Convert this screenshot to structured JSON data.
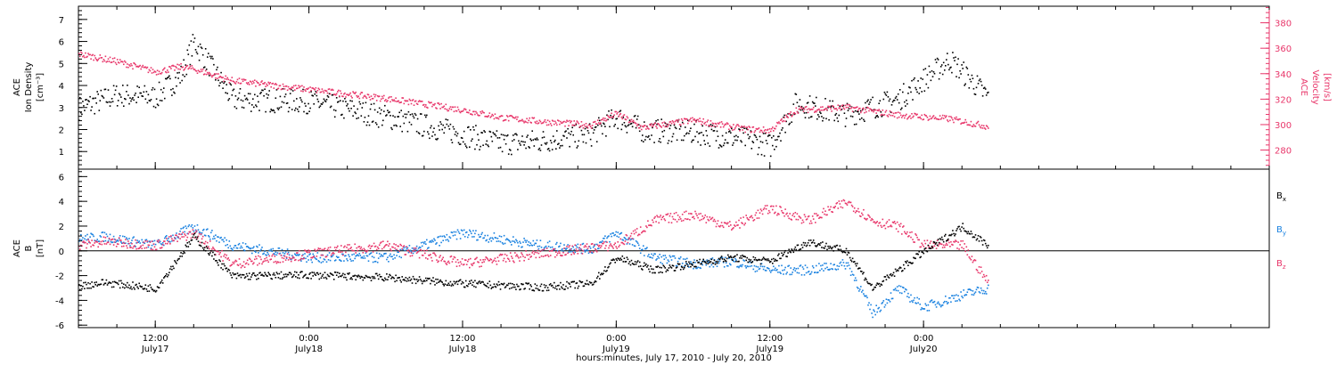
{
  "figure": {
    "xlabel": "hours:minutes, July 17, 2010 - July 20, 2010",
    "x_ticks": [
      {
        "time": "12:00",
        "day": "July17"
      },
      {
        "time": "0:00",
        "day": "July18"
      },
      {
        "time": "12:00",
        "day": "July18"
      },
      {
        "time": "0:00",
        "day": "July19"
      },
      {
        "time": "12:00",
        "day": "July19"
      },
      {
        "time": "0:00",
        "day": "July20"
      }
    ]
  },
  "chart_data": [
    {
      "type": "scatter",
      "panel": "top",
      "xlim": [
        "2010-07-17 06:00",
        "2010-07-21 03:00"
      ],
      "left_axis": {
        "label_line1": "ACE",
        "label_line2": "Ion Density",
        "units": "[cm⁻³]",
        "ylim": [
          0.2,
          7.6
        ],
        "ticks": [
          1,
          2,
          3,
          4,
          5,
          6,
          7
        ]
      },
      "right_axis": {
        "label_line1": "ACE",
        "label_line2": "Velocity",
        "units": "[km/s]",
        "ylim": [
          265,
          393
        ],
        "ticks": [
          280,
          300,
          320,
          340,
          360,
          380
        ]
      },
      "series": [
        {
          "name": "Ion Density",
          "axis": "left",
          "color": "#000000",
          "x": [
            "2010-07-17 06:00",
            "2010-07-17 09:00",
            "2010-07-17 12:00",
            "2010-07-17 14:00",
            "2010-07-17 15:00",
            "2010-07-17 18:00",
            "2010-07-18 00:00",
            "2010-07-18 06:00",
            "2010-07-18 12:00",
            "2010-07-18 15:00",
            "2010-07-18 18:00",
            "2010-07-18 22:00",
            "2010-07-19 00:00",
            "2010-07-19 02:00",
            "2010-07-19 06:00",
            "2010-07-19 10:00",
            "2010-07-19 12:00",
            "2010-07-19 14:00",
            "2010-07-19 18:00",
            "2010-07-19 22:00",
            "2010-07-20 02:00",
            "2010-07-20 05:00"
          ],
          "values": [
            3.0,
            3.6,
            3.5,
            4.5,
            6.0,
            3.4,
            3.3,
            2.6,
            1.8,
            1.4,
            1.5,
            1.8,
            2.6,
            2.0,
            1.9,
            1.6,
            1.3,
            3.2,
            2.7,
            3.4,
            5.2,
            3.5
          ]
        },
        {
          "name": "Velocity",
          "axis": "right",
          "color": "#e8366a",
          "x": [
            "2010-07-17 06:00",
            "2010-07-17 09:00",
            "2010-07-17 12:00",
            "2010-07-17 14:00",
            "2010-07-17 15:00",
            "2010-07-17 18:00",
            "2010-07-18 00:00",
            "2010-07-18 06:00",
            "2010-07-18 12:00",
            "2010-07-18 15:00",
            "2010-07-18 18:00",
            "2010-07-18 22:00",
            "2010-07-19 00:00",
            "2010-07-19 02:00",
            "2010-07-19 06:00",
            "2010-07-19 10:00",
            "2010-07-19 12:00",
            "2010-07-19 14:00",
            "2010-07-19 18:00",
            "2010-07-19 22:00",
            "2010-07-20 02:00",
            "2010-07-20 05:00"
          ],
          "values": [
            356,
            350,
            342,
            346,
            344,
            335,
            328,
            321,
            312,
            306,
            303,
            300,
            309,
            298,
            304,
            297,
            296,
            312,
            314,
            308,
            305,
            299
          ]
        }
      ]
    },
    {
      "type": "scatter",
      "panel": "bottom",
      "xlim": [
        "2010-07-17 06:00",
        "2010-07-21 03:00"
      ],
      "y_axis": {
        "label_line1": "ACE",
        "label_line2": "B",
        "units": "[nT]",
        "ylim": [
          -6.2,
          6.6
        ],
        "ticks": [
          -6,
          -4,
          -2,
          0,
          2,
          4,
          6
        ]
      },
      "zero_line": true,
      "series": [
        {
          "name": "Bx",
          "legend_main": "B",
          "legend_sub": "x",
          "color": "#000000",
          "x": [
            "2010-07-17 06:00",
            "2010-07-17 08:00",
            "2010-07-17 12:00",
            "2010-07-17 15:00",
            "2010-07-17 18:00",
            "2010-07-18 00:00",
            "2010-07-18 06:00",
            "2010-07-18 12:00",
            "2010-07-18 18:00",
            "2010-07-18 22:00",
            "2010-07-19 00:00",
            "2010-07-19 03:00",
            "2010-07-19 06:00",
            "2010-07-19 09:00",
            "2010-07-19 12:00",
            "2010-07-19 15:00",
            "2010-07-19 18:00",
            "2010-07-19 20:00",
            "2010-07-19 22:00",
            "2010-07-20 00:00",
            "2010-07-20 03:00",
            "2010-07-20 05:00"
          ],
          "values": [
            -2.8,
            -2.5,
            -3.0,
            1.2,
            -2.0,
            -1.9,
            -2.1,
            -2.6,
            -2.9,
            -2.6,
            -0.5,
            -1.5,
            -1.0,
            -0.5,
            -0.8,
            0.8,
            0.0,
            -3.0,
            -1.5,
            0.0,
            2.0,
            0.5
          ]
        },
        {
          "name": "By",
          "legend_main": "B",
          "legend_sub": "y",
          "color": "#1a82e0",
          "x": [
            "2010-07-17 06:00",
            "2010-07-17 08:00",
            "2010-07-17 12:00",
            "2010-07-17 15:00",
            "2010-07-17 18:00",
            "2010-07-18 00:00",
            "2010-07-18 06:00",
            "2010-07-18 12:00",
            "2010-07-18 18:00",
            "2010-07-18 22:00",
            "2010-07-19 00:00",
            "2010-07-19 03:00",
            "2010-07-19 06:00",
            "2010-07-19 09:00",
            "2010-07-19 12:00",
            "2010-07-19 15:00",
            "2010-07-19 18:00",
            "2010-07-19 20:00",
            "2010-07-19 22:00",
            "2010-07-20 00:00",
            "2010-07-20 03:00",
            "2010-07-20 05:00"
          ],
          "values": [
            1.0,
            1.2,
            0.5,
            2.0,
            0.5,
            -0.5,
            -0.5,
            1.5,
            0.5,
            0.2,
            1.5,
            -0.5,
            -1.0,
            -0.8,
            -1.5,
            -1.5,
            -1.0,
            -5.0,
            -3.0,
            -4.5,
            -3.5,
            -3.0
          ]
        },
        {
          "name": "Bz",
          "legend_main": "B",
          "legend_sub": "z",
          "color": "#e8366a",
          "x": [
            "2010-07-17 06:00",
            "2010-07-17 08:00",
            "2010-07-17 12:00",
            "2010-07-17 15:00",
            "2010-07-17 18:00",
            "2010-07-18 00:00",
            "2010-07-18 06:00",
            "2010-07-18 12:00",
            "2010-07-18 18:00",
            "2010-07-18 22:00",
            "2010-07-19 00:00",
            "2010-07-19 03:00",
            "2010-07-19 06:00",
            "2010-07-19 09:00",
            "2010-07-19 12:00",
            "2010-07-19 15:00",
            "2010-07-19 18:00",
            "2010-07-19 20:00",
            "2010-07-19 22:00",
            "2010-07-20 00:00",
            "2010-07-20 03:00",
            "2010-07-20 05:00"
          ],
          "values": [
            0.5,
            0.8,
            0.5,
            1.5,
            -1.0,
            -0.2,
            0.5,
            -1.0,
            -0.2,
            0.3,
            0.5,
            2.5,
            3.0,
            2.0,
            3.5,
            2.5,
            4.0,
            2.5,
            2.0,
            0.5,
            0.5,
            -2.5
          ]
        }
      ]
    }
  ]
}
